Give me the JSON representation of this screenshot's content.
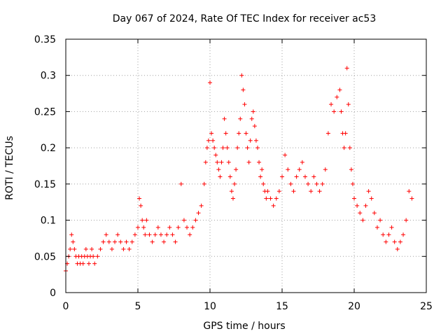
{
  "chart_data": {
    "type": "scatter",
    "title": "Day 067 of 2024, Rate Of TEC Index for receiver ac53",
    "xlabel": "GPS time / hours",
    "ylabel": "ROTI / TECUs",
    "xlim": [
      0,
      25
    ],
    "ylim": [
      0,
      0.35
    ],
    "x_ticks": [
      0,
      5,
      10,
      15,
      20,
      25
    ],
    "y_ticks": [
      0,
      0.05,
      0.1,
      0.15,
      0.2,
      0.25,
      0.3,
      0.35
    ],
    "x_tick_labels": [
      "0",
      "5",
      "10",
      "15",
      "20",
      "25"
    ],
    "y_tick_labels": [
      "0",
      "0.05",
      "0.1",
      "0.15",
      "0.2",
      "0.25",
      "0.3",
      "0.35"
    ],
    "grid": true,
    "legend": false,
    "marker": "+",
    "color": "#ff0000",
    "series": [
      {
        "x": [
          0.0,
          0.1,
          0.2,
          0.3,
          0.4,
          0.5,
          0.6,
          0.7,
          0.8,
          0.9,
          1.0,
          1.1,
          1.2,
          1.3,
          1.4,
          1.5,
          1.6,
          1.7,
          1.8,
          1.9,
          2.0,
          2.2,
          2.4,
          2.6,
          2.8,
          3.0,
          3.2,
          3.4,
          3.6,
          3.8,
          4.0,
          4.2,
          4.4,
          4.6,
          4.8,
          5.0,
          5.1,
          5.2,
          5.3,
          5.4,
          5.5,
          5.6,
          5.8,
          6.0,
          6.2,
          6.4,
          6.6,
          6.8,
          7.0,
          7.2,
          7.4,
          7.6,
          7.8,
          8.0,
          8.2,
          8.4,
          8.6,
          8.8,
          9.0,
          9.2,
          9.4,
          9.6,
          9.7,
          9.8,
          9.9,
          10.0,
          10.1,
          10.2,
          10.3,
          10.4,
          10.5,
          10.6,
          10.7,
          10.8,
          10.9,
          11.0,
          11.1,
          11.2,
          11.3,
          11.4,
          11.5,
          11.6,
          11.7,
          11.8,
          11.9,
          12.0,
          12.1,
          12.2,
          12.3,
          12.4,
          12.5,
          12.6,
          12.7,
          12.8,
          12.9,
          13.0,
          13.1,
          13.2,
          13.3,
          13.4,
          13.5,
          13.6,
          13.7,
          13.8,
          13.9,
          14.0,
          14.2,
          14.4,
          14.6,
          14.8,
          15.0,
          15.2,
          15.4,
          15.6,
          15.8,
          16.0,
          16.2,
          16.4,
          16.6,
          16.8,
          17.0,
          17.2,
          17.4,
          17.6,
          17.8,
          18.0,
          18.2,
          18.4,
          18.6,
          18.8,
          19.0,
          19.1,
          19.2,
          19.3,
          19.4,
          19.5,
          19.6,
          19.7,
          19.8,
          19.9,
          20.0,
          20.2,
          20.4,
          20.6,
          20.8,
          21.0,
          21.2,
          21.4,
          21.6,
          21.8,
          22.0,
          22.2,
          22.4,
          22.6,
          22.8,
          23.0,
          23.2,
          23.4,
          23.6,
          23.8,
          24.0
        ],
        "y": [
          0.03,
          0.04,
          0.05,
          0.06,
          0.08,
          0.07,
          0.06,
          0.05,
          0.04,
          0.05,
          0.04,
          0.05,
          0.04,
          0.05,
          0.06,
          0.05,
          0.04,
          0.05,
          0.06,
          0.05,
          0.04,
          0.05,
          0.06,
          0.07,
          0.08,
          0.07,
          0.06,
          0.07,
          0.08,
          0.07,
          0.06,
          0.07,
          0.06,
          0.07,
          0.08,
          0.09,
          0.13,
          0.12,
          0.1,
          0.09,
          0.08,
          0.1,
          0.08,
          0.07,
          0.08,
          0.09,
          0.08,
          0.07,
          0.08,
          0.09,
          0.08,
          0.07,
          0.09,
          0.15,
          0.1,
          0.09,
          0.08,
          0.09,
          0.1,
          0.11,
          0.12,
          0.15,
          0.18,
          0.2,
          0.21,
          0.29,
          0.22,
          0.21,
          0.2,
          0.19,
          0.18,
          0.17,
          0.16,
          0.18,
          0.2,
          0.24,
          0.22,
          0.2,
          0.18,
          0.16,
          0.14,
          0.13,
          0.15,
          0.17,
          0.2,
          0.22,
          0.24,
          0.3,
          0.28,
          0.26,
          0.22,
          0.2,
          0.18,
          0.21,
          0.24,
          0.25,
          0.23,
          0.21,
          0.2,
          0.18,
          0.16,
          0.17,
          0.15,
          0.14,
          0.13,
          0.14,
          0.13,
          0.12,
          0.13,
          0.14,
          0.16,
          0.19,
          0.17,
          0.15,
          0.14,
          0.16,
          0.17,
          0.18,
          0.16,
          0.15,
          0.14,
          0.16,
          0.15,
          0.14,
          0.15,
          0.17,
          0.22,
          0.26,
          0.25,
          0.27,
          0.28,
          0.25,
          0.22,
          0.2,
          0.22,
          0.31,
          0.26,
          0.2,
          0.17,
          0.15,
          0.13,
          0.12,
          0.11,
          0.1,
          0.12,
          0.14,
          0.13,
          0.11,
          0.09,
          0.1,
          0.08,
          0.07,
          0.08,
          0.09,
          0.07,
          0.06,
          0.07,
          0.08,
          0.1,
          0.14,
          0.13
        ]
      }
    ]
  }
}
